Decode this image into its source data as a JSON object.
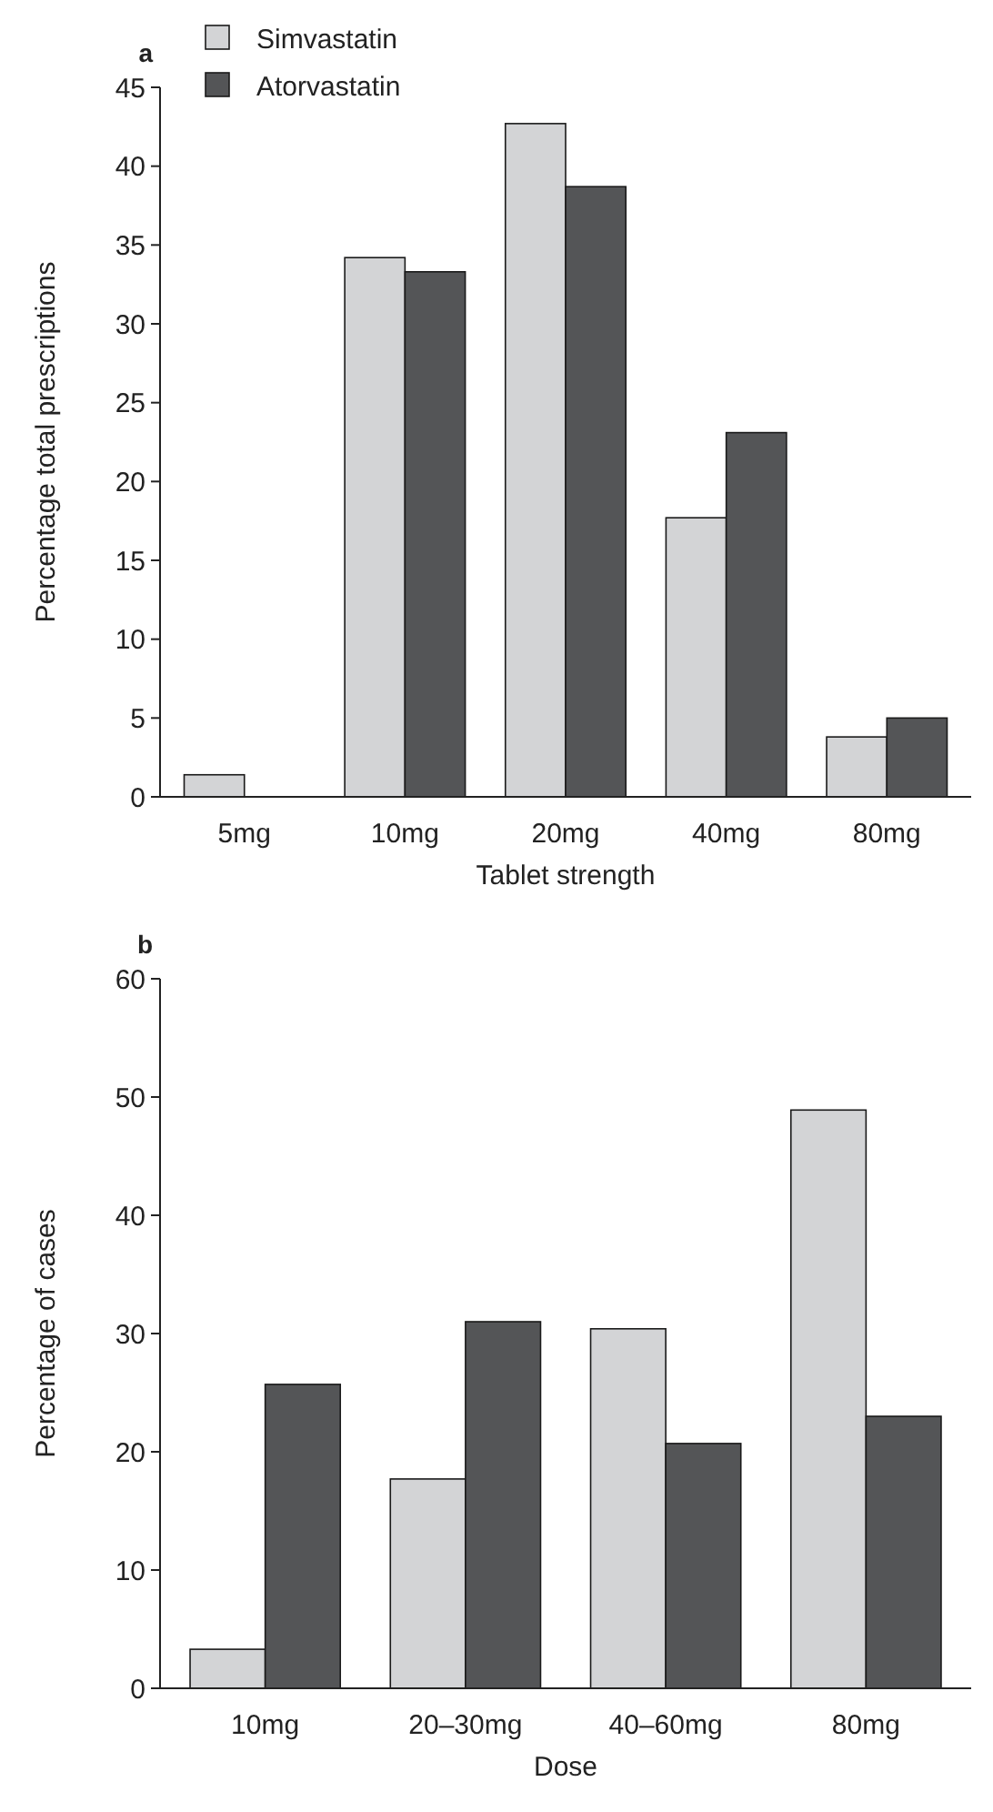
{
  "chart_data": [
    {
      "type": "bar",
      "title": "a",
      "xlabel": "Tablet strength",
      "ylabel": "Percentage total prescriptions",
      "categories": [
        "5mg",
        "10mg",
        "20mg",
        "40mg",
        "80mg"
      ],
      "ylim": [
        0,
        45
      ],
      "yticks": [
        0,
        5,
        10,
        15,
        20,
        25,
        30,
        35,
        40,
        45
      ],
      "grid": false,
      "legend": "top left",
      "series": [
        {
          "name": "Simvastatin",
          "color": "#d3d4d6",
          "values": [
            1.4,
            34.2,
            42.7,
            17.7,
            3.8
          ]
        },
        {
          "name": "Atorvastatin",
          "color": "#545557",
          "values": [
            null,
            33.3,
            38.7,
            23.1,
            5.0
          ]
        }
      ]
    },
    {
      "type": "bar",
      "title": "b",
      "xlabel": "Dose",
      "ylabel": "Percentage of cases",
      "categories": [
        "10mg",
        "20–30mg",
        "40–60mg",
        "80mg"
      ],
      "ylim": [
        0,
        60
      ],
      "yticks": [
        0,
        10,
        20,
        30,
        40,
        50,
        60
      ],
      "grid": false,
      "legend": false,
      "series": [
        {
          "color": "#d3d4d6",
          "values": [
            3.3,
            17.7,
            30.4,
            48.9
          ]
        },
        {
          "color": "#545557",
          "values": [
            25.7,
            31.0,
            20.7,
            23.0
          ]
        }
      ]
    }
  ]
}
